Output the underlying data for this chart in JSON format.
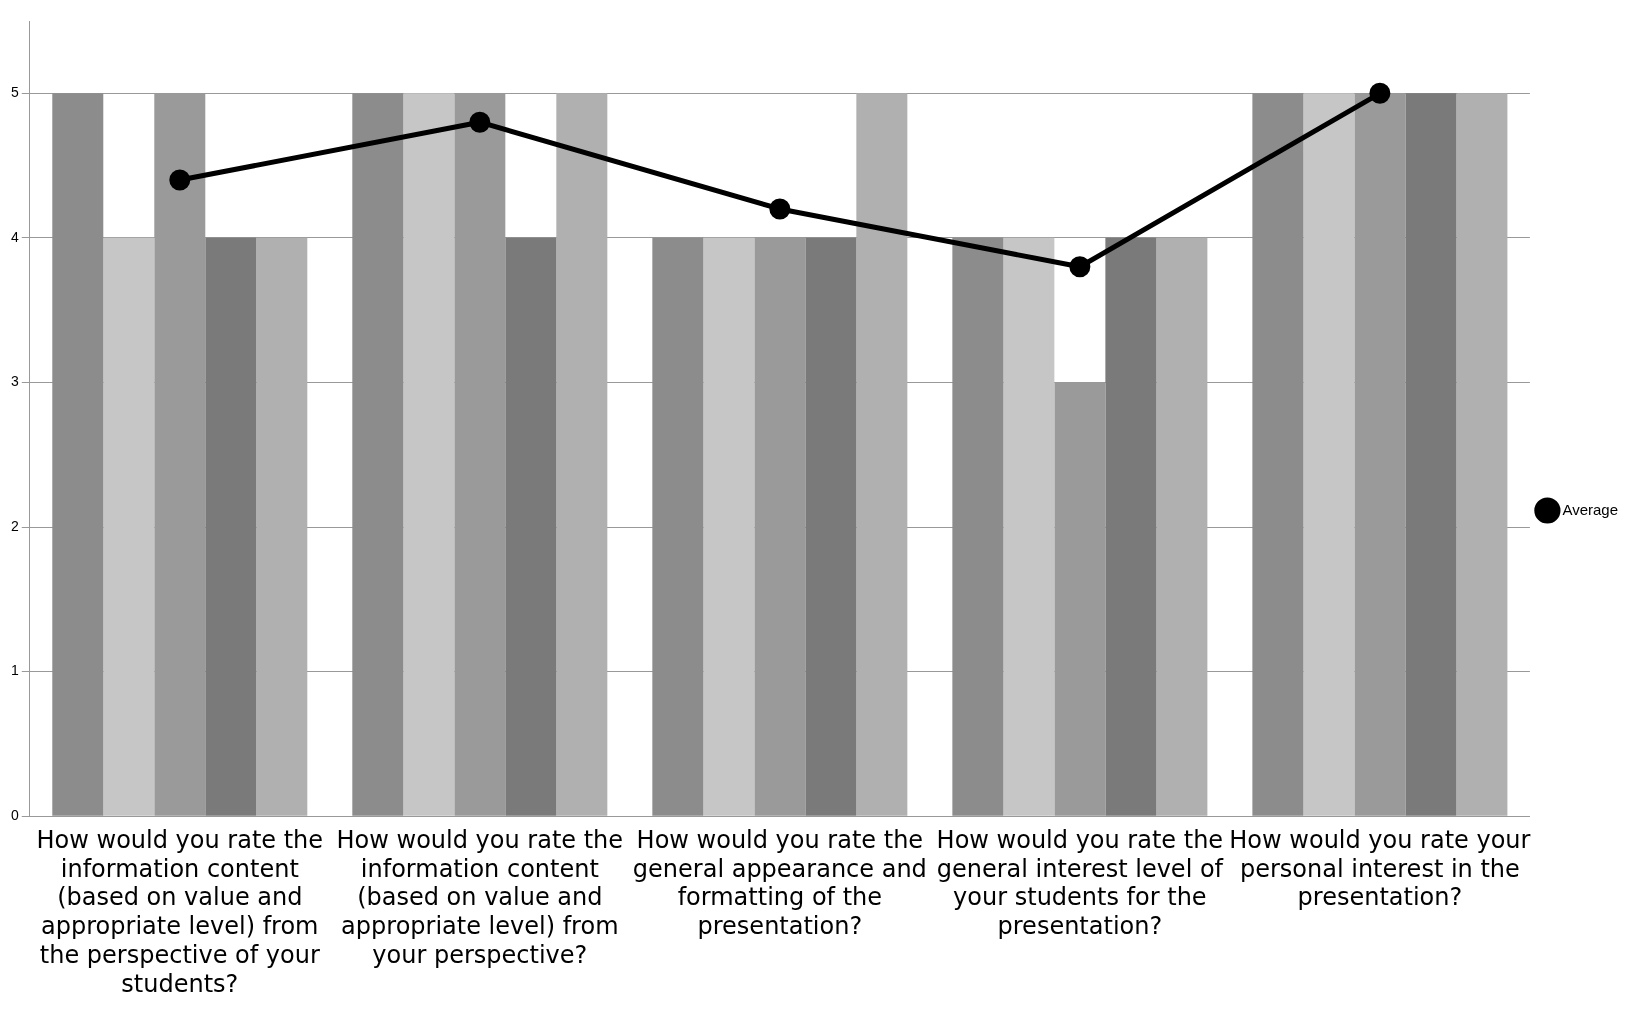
{
  "chart_data": {
    "type": "bar",
    "categories": [
      "How would you rate the information content (based on value and appropriate level) from the perspective of your students?",
      "How would you rate the information content (based on value and appropriate level) from your perspective?",
      "How would you rate the general appearance and formatting of the presentation?",
      "How would you rate the general interest level of your students for the presentation?",
      "How would you rate your personal interest in the presentation?"
    ],
    "series": [
      {
        "color": "#8c8c8c",
        "values": [
          5,
          5,
          4,
          4,
          5
        ]
      },
      {
        "color": "#c6c6c6",
        "values": [
          4,
          5,
          4,
          4,
          5
        ]
      },
      {
        "color": "#9a9a9a",
        "values": [
          5,
          5,
          4,
          3,
          5
        ]
      },
      {
        "color": "#7a7a7a",
        "values": [
          4,
          4,
          4,
          4,
          5
        ]
      },
      {
        "color": "#b0b0b0",
        "values": [
          4,
          5,
          5,
          4,
          5
        ]
      },
      {
        "type": "line",
        "name": "Average",
        "color": "#000000",
        "values": [
          4.4,
          4.8,
          4.2,
          3.8,
          5.0
        ]
      }
    ],
    "ylim": [
      0,
      5.5
    ],
    "yticks": [
      0,
      1,
      2,
      3,
      4,
      5
    ],
    "grid": "y",
    "legend": "right",
    "marker": "circle"
  }
}
